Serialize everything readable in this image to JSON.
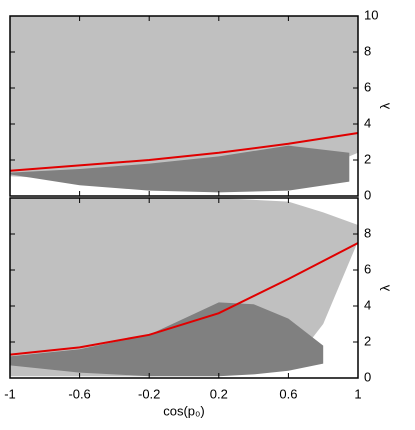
{
  "chart_data": [
    {
      "type": "line",
      "ylabel": "λ",
      "xlim": [
        -1,
        1
      ],
      "ylim": [
        0,
        10
      ],
      "yticks": [
        0,
        2,
        4,
        6,
        8,
        10
      ],
      "regions": [
        {
          "color": "#c0c0c0",
          "x": [
            -1,
            -0.6,
            -0.2,
            0.2,
            0.6,
            1
          ],
          "lower": [
            1.1,
            0.9,
            0.6,
            0.5,
            0.8,
            2.4
          ],
          "upper": [
            10,
            10,
            10,
            10,
            10,
            10
          ]
        },
        {
          "color": "#808080",
          "x": [
            -1,
            -0.6,
            -0.2,
            0.2,
            0.6,
            0.95
          ],
          "lower": [
            1.2,
            0.6,
            0.3,
            0.2,
            0.3,
            0.8
          ],
          "upper": [
            1.3,
            1.5,
            1.8,
            2.2,
            2.8,
            2.4
          ]
        }
      ],
      "series": [
        {
          "color": "#e00000",
          "x": [
            -1,
            -0.6,
            -0.2,
            0.2,
            0.6,
            1
          ],
          "values": [
            1.4,
            1.7,
            2.0,
            2.4,
            2.9,
            3.5
          ]
        }
      ]
    },
    {
      "type": "line",
      "ylabel": "λ",
      "xlabel": "cos(p₀)",
      "xlim": [
        -1,
        1
      ],
      "ylim": [
        0,
        10
      ],
      "yticks": [
        0,
        2,
        4,
        6,
        8
      ],
      "xticks": [
        -1,
        -0.6,
        -0.2,
        0.2,
        0.6,
        1
      ],
      "regions": [
        {
          "color": "#c0c0c0",
          "x": [
            -1,
            -0.6,
            -0.2,
            0.2,
            0.6,
            0.8,
            1
          ],
          "lower": [
            0.1,
            0.1,
            0.1,
            0.2,
            0.5,
            3,
            7.6
          ],
          "upper": [
            10,
            10,
            10,
            10,
            9.8,
            9.2,
            8.5
          ]
        },
        {
          "color": "#808080",
          "x": [
            -1,
            -0.6,
            -0.2,
            0.2,
            0.4,
            0.6,
            0.8
          ],
          "lower": [
            0.7,
            0.3,
            0.1,
            0.1,
            0.2,
            0.4,
            0.8
          ],
          "upper": [
            1.2,
            1.6,
            2.4,
            4.2,
            4.1,
            3.3,
            1.8
          ]
        }
      ],
      "series": [
        {
          "color": "#e00000",
          "x": [
            -1,
            -0.6,
            -0.2,
            0.2,
            0.6,
            1
          ],
          "values": [
            1.3,
            1.7,
            2.4,
            3.6,
            5.5,
            7.5
          ]
        }
      ]
    }
  ]
}
